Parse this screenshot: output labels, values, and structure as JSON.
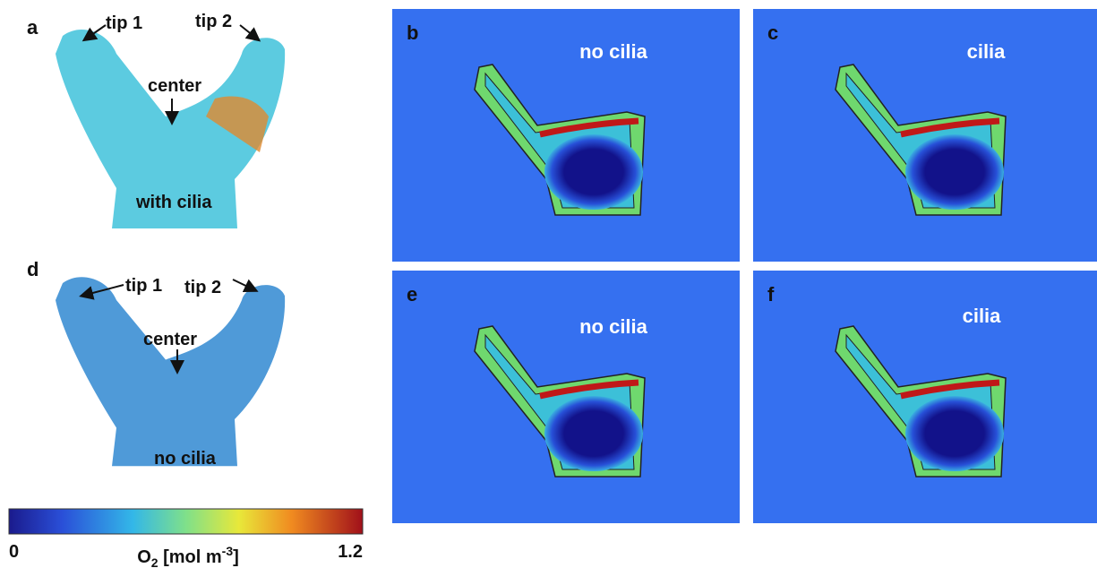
{
  "panel_a": {
    "label": "a",
    "tip1": "tip 1",
    "tip2": "tip 2",
    "center": "center",
    "condition": "with cilia"
  },
  "panel_b": {
    "label": "b",
    "condition": "no cilia"
  },
  "panel_c": {
    "label": "c",
    "condition": "cilia"
  },
  "panel_d": {
    "label": "d",
    "tip1": "tip 1",
    "tip2": "tip 2",
    "center": "center",
    "condition": "no cilia"
  },
  "panel_e": {
    "label": "e",
    "condition": "no cilia"
  },
  "panel_f": {
    "label": "f",
    "condition": "cilia"
  },
  "colorbar": {
    "min": 0,
    "max": 1.2,
    "species": "O",
    "subscript": "2",
    "unit": "[mol m",
    "exponent": "-3",
    "close": "]"
  }
}
